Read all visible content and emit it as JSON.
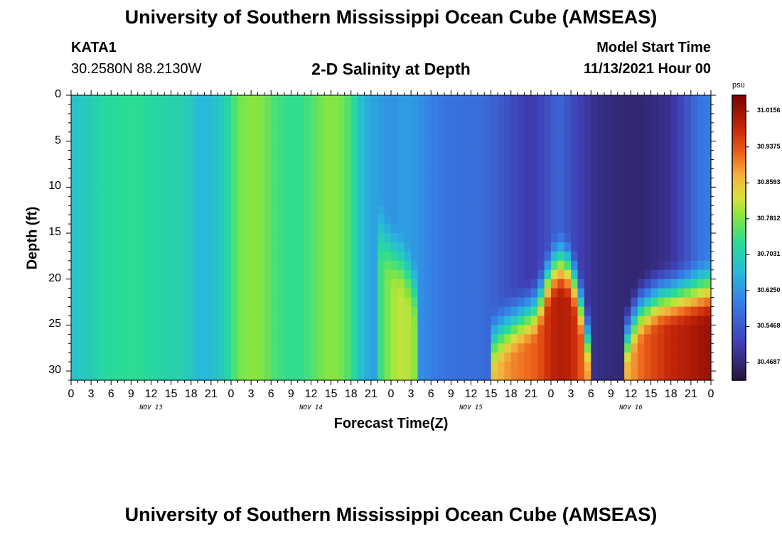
{
  "title": "University of Southern Mississippi Ocean Cube (AMSEAS)",
  "station": {
    "name": "KATA1",
    "coords": "30.2580N  88.2130W"
  },
  "model": {
    "label": "Model Start Time",
    "start": "11/13/2021 Hour 00"
  },
  "repeated_title": "University of Southern Mississippi Ocean Cube (AMSEAS)",
  "chart_data": {
    "type": "heatmap",
    "title": "2-D Salinity at Depth",
    "xlabel": "Forecast Time(Z)",
    "ylabel": "Depth (ft)",
    "x_range_hours": [
      0,
      96
    ],
    "x_ticks_hours": [
      0,
      3,
      6,
      9,
      12,
      15,
      18,
      21,
      24,
      27,
      30,
      33,
      36,
      39,
      42,
      45,
      48,
      51,
      54,
      57,
      60,
      63,
      66,
      69,
      72,
      75,
      78,
      81,
      84,
      87,
      90,
      93,
      96
    ],
    "x_tick_labels": [
      "0",
      "3",
      "6",
      "9",
      "12",
      "15",
      "18",
      "21",
      "0",
      "3",
      "6",
      "9",
      "12",
      "15",
      "18",
      "21",
      "0",
      "3",
      "6",
      "9",
      "12",
      "15",
      "18",
      "21",
      "0",
      "3",
      "6",
      "9",
      "12",
      "15",
      "18",
      "21",
      "0"
    ],
    "day_labels": [
      {
        "hour": 12,
        "text": "NOV 13"
      },
      {
        "hour": 36,
        "text": "NOV 14"
      },
      {
        "hour": 60,
        "text": "NOV 15"
      },
      {
        "hour": 84,
        "text": "NOV 16"
      }
    ],
    "y_range_ft": [
      0,
      31
    ],
    "y_ticks": [
      0,
      5,
      10,
      15,
      20,
      25,
      30
    ],
    "colorbar": {
      "unit": "psu",
      "min": 30.43,
      "max": 31.05,
      "ticks": [
        31.0156,
        30.9375,
        30.8593,
        30.7812,
        30.7031,
        30.625,
        30.5468,
        30.4687
      ],
      "tick_labels": [
        "31.0156",
        "30.9375",
        "30.8593",
        "30.7812",
        "30.7031",
        "30.6250",
        "30.5468",
        "30.4687"
      ]
    },
    "surface_salinity_psu": [
      {
        "h": 0,
        "v": 30.68
      },
      {
        "h": 3,
        "v": 30.7
      },
      {
        "h": 5,
        "v": 30.72
      },
      {
        "h": 8,
        "v": 30.73
      },
      {
        "h": 10,
        "v": 30.73
      },
      {
        "h": 13,
        "v": 30.715
      },
      {
        "h": 17,
        "v": 30.705
      },
      {
        "h": 19,
        "v": 30.67
      },
      {
        "h": 20,
        "v": 30.665
      },
      {
        "h": 22,
        "v": 30.68
      },
      {
        "h": 24,
        "v": 30.73
      },
      {
        "h": 25,
        "v": 30.77
      },
      {
        "h": 27,
        "v": 30.79
      },
      {
        "h": 29,
        "v": 30.78
      },
      {
        "h": 30,
        "v": 30.755
      },
      {
        "h": 32,
        "v": 30.735
      },
      {
        "h": 34,
        "v": 30.73
      },
      {
        "h": 36,
        "v": 30.75
      },
      {
        "h": 38,
        "v": 30.78
      },
      {
        "h": 39,
        "v": 30.79
      },
      {
        "h": 41,
        "v": 30.77
      },
      {
        "h": 42,
        "v": 30.74
      },
      {
        "h": 43,
        "v": 30.7
      },
      {
        "h": 44,
        "v": 30.655
      },
      {
        "h": 46,
        "v": 30.635
      },
      {
        "h": 48,
        "v": 30.62
      },
      {
        "h": 50,
        "v": 30.635
      },
      {
        "h": 52,
        "v": 30.625
      },
      {
        "h": 54,
        "v": 30.6
      },
      {
        "h": 56,
        "v": 30.585
      },
      {
        "h": 59,
        "v": 30.58
      },
      {
        "h": 62,
        "v": 30.575
      },
      {
        "h": 64,
        "v": 30.555
      },
      {
        "h": 66,
        "v": 30.53
      },
      {
        "h": 69,
        "v": 30.5
      },
      {
        "h": 72,
        "v": 30.54
      },
      {
        "h": 73,
        "v": 30.57
      },
      {
        "h": 75,
        "v": 30.53
      },
      {
        "h": 77,
        "v": 30.5
      },
      {
        "h": 79,
        "v": 30.48
      },
      {
        "h": 82,
        "v": 30.47
      },
      {
        "h": 85,
        "v": 30.465
      },
      {
        "h": 88,
        "v": 30.475
      },
      {
        "h": 90,
        "v": 30.49
      },
      {
        "h": 92,
        "v": 30.53
      },
      {
        "h": 94,
        "v": 30.58
      },
      {
        "h": 96,
        "v": 30.6
      }
    ],
    "bottom_intrusion_top_ft": [
      {
        "h": 0,
        "v": 99
      },
      {
        "h": 45,
        "v": 99
      },
      {
        "h": 46,
        "v": 13
      },
      {
        "h": 48,
        "v": 16
      },
      {
        "h": 50,
        "v": 17.5
      },
      {
        "h": 52,
        "v": 21
      },
      {
        "h": 55,
        "v": 99
      },
      {
        "h": 62,
        "v": 99
      },
      {
        "h": 63,
        "v": 26
      },
      {
        "h": 65,
        "v": 24.5
      },
      {
        "h": 68,
        "v": 23
      },
      {
        "h": 70,
        "v": 22
      },
      {
        "h": 72,
        "v": 18
      },
      {
        "h": 74,
        "v": 17
      },
      {
        "h": 76,
        "v": 20
      },
      {
        "h": 78,
        "v": 27
      },
      {
        "h": 79,
        "v": 99
      },
      {
        "h": 82,
        "v": 99
      },
      {
        "h": 83,
        "v": 26
      },
      {
        "h": 85,
        "v": 22.5
      },
      {
        "h": 88,
        "v": 21
      },
      {
        "h": 96,
        "v": 20
      }
    ],
    "bottom_intrusion_salinity_psu": [
      {
        "h": 0,
        "v": 30.7
      },
      {
        "h": 45,
        "v": 30.7
      },
      {
        "h": 46,
        "v": 30.72
      },
      {
        "h": 48,
        "v": 30.8
      },
      {
        "h": 50,
        "v": 30.82
      },
      {
        "h": 52,
        "v": 30.78
      },
      {
        "h": 55,
        "v": 30.7
      },
      {
        "h": 62,
        "v": 30.7
      },
      {
        "h": 63,
        "v": 30.85
      },
      {
        "h": 66,
        "v": 30.9
      },
      {
        "h": 70,
        "v": 30.93
      },
      {
        "h": 72,
        "v": 30.98
      },
      {
        "h": 74,
        "v": 31.0
      },
      {
        "h": 76,
        "v": 30.96
      },
      {
        "h": 78,
        "v": 30.86
      },
      {
        "h": 80,
        "v": 30.72
      },
      {
        "h": 82,
        "v": 30.7
      },
      {
        "h": 83,
        "v": 30.86
      },
      {
        "h": 86,
        "v": 30.93
      },
      {
        "h": 90,
        "v": 30.98
      },
      {
        "h": 96,
        "v": 31.02
      }
    ]
  }
}
